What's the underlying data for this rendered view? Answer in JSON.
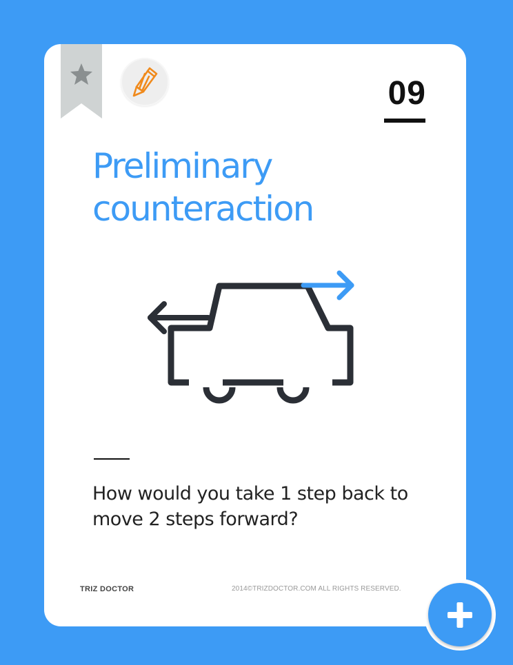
{
  "card": {
    "number": "09",
    "title": "Preliminary\ncounteraction",
    "question": "How would you take 1 step back to move 2 steps forward?",
    "brand": "TRIZ DOCTOR",
    "copyright": "2014©TRIZDOCTOR.COM  ALL RIGHTS RESERVED."
  },
  "icons": {
    "bookmark": "star-bookmark-icon",
    "badge": "pencil-icon",
    "illustration": "car-with-arrows-icon",
    "fab": "plus-icon"
  },
  "colors": {
    "background": "#3d9bf5",
    "accent": "#3d9bf5",
    "pencil": "#f08a1c",
    "illustration": "#2b2f36"
  }
}
